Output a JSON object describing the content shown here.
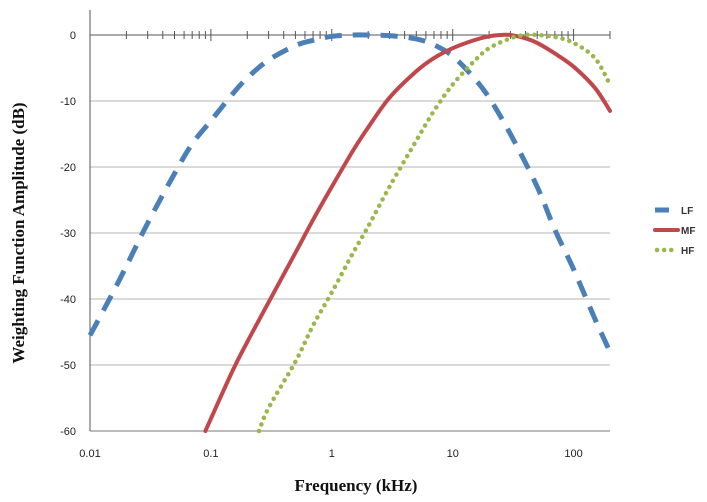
{
  "chart_data": {
    "type": "line",
    "title": "",
    "xlabel": "Frequency (kHz)",
    "ylabel": "Weighting Function Amplitude (dB)",
    "xscale": "log",
    "xlim": [
      0.01,
      200
    ],
    "ylim": [
      -60,
      0
    ],
    "x_ticks": [
      {
        "value": 0.01,
        "label": "0.01"
      },
      {
        "value": 0.1,
        "label": "0.1"
      },
      {
        "value": 1,
        "label": "1"
      },
      {
        "value": 10,
        "label": "10"
      },
      {
        "value": 100,
        "label": "100"
      }
    ],
    "y_ticks": [
      {
        "value": 0,
        "label": "0"
      },
      {
        "value": -10,
        "label": "-10"
      },
      {
        "value": -20,
        "label": "-20"
      },
      {
        "value": -30,
        "label": "-30"
      },
      {
        "value": -40,
        "label": "-40"
      },
      {
        "value": -50,
        "label": "-50"
      },
      {
        "value": -60,
        "label": "-60"
      }
    ],
    "grid": {
      "horizontal": true,
      "vertical": false
    },
    "legend_position": "right",
    "series": [
      {
        "name": "LF",
        "color": "#4a7fb8",
        "style": "dashed",
        "x": [
          0.01,
          0.015,
          0.02,
          0.03,
          0.05,
          0.07,
          0.1,
          0.15,
          0.2,
          0.3,
          0.5,
          0.7,
          1,
          1.5,
          2,
          3,
          5,
          7,
          10,
          15,
          20,
          30,
          50,
          70,
          100,
          150,
          200
        ],
        "y": [
          -45.5,
          -39.5,
          -35,
          -28.5,
          -21,
          -16.5,
          -13,
          -9,
          -6.5,
          -3.8,
          -1.6,
          -0.8,
          -0.2,
          0,
          0,
          -0.1,
          -0.6,
          -1.5,
          -3.2,
          -6.5,
          -9.5,
          -15,
          -23,
          -29.5,
          -35.5,
          -43,
          -48
        ]
      },
      {
        "name": "MF",
        "color": "#c0474a",
        "style": "solid",
        "x": [
          0.09,
          0.15,
          0.2,
          0.3,
          0.5,
          0.7,
          1,
          1.5,
          2,
          3,
          5,
          7,
          10,
          15,
          20,
          25,
          30,
          40,
          50,
          70,
          100,
          150,
          200
        ],
        "y": [
          -60,
          -51,
          -46.5,
          -40.5,
          -33,
          -28,
          -23,
          -17.5,
          -14,
          -9.5,
          -5.5,
          -3.5,
          -2,
          -0.8,
          -0.2,
          0,
          0,
          -0.5,
          -1.2,
          -2.8,
          -4.8,
          -8,
          -11.5
        ]
      },
      {
        "name": "HF",
        "color": "#9ab84a",
        "style": "dotted",
        "x": [
          0.25,
          0.3,
          0.5,
          0.7,
          1,
          1.5,
          2,
          3,
          5,
          7,
          10,
          15,
          20,
          30,
          40,
          50,
          70,
          100,
          150,
          200
        ],
        "y": [
          -60,
          -56.5,
          -49.5,
          -44,
          -39,
          -33,
          -29,
          -23,
          -16,
          -11.5,
          -7.5,
          -4,
          -2,
          -0.5,
          0,
          0,
          -0.3,
          -1.2,
          -3.5,
          -7.5
        ]
      }
    ]
  }
}
